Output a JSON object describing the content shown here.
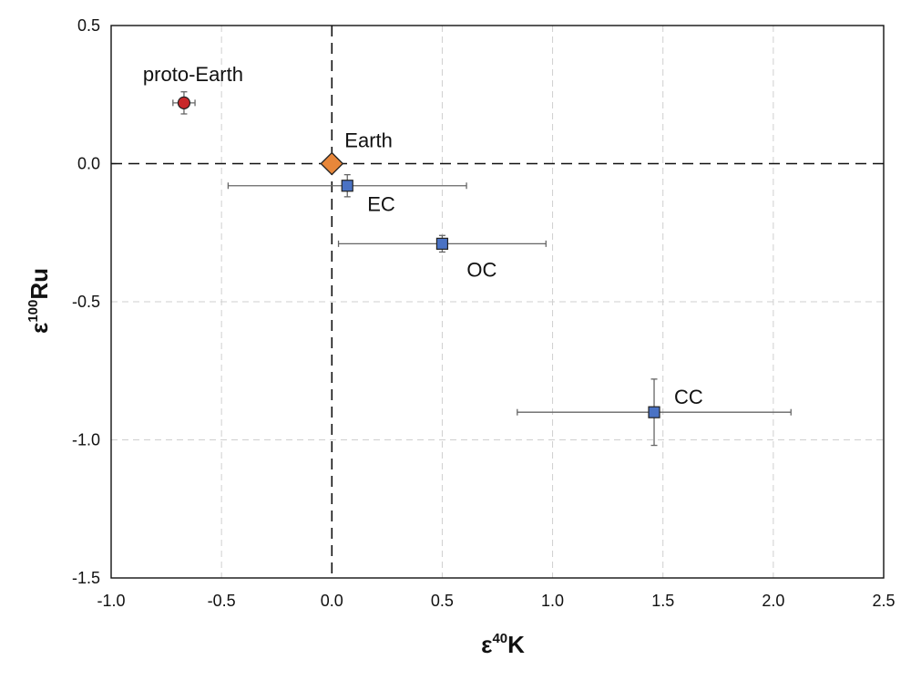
{
  "chart_data": {
    "type": "scatter",
    "title": "",
    "xlabel": {
      "prefix": "ε",
      "sup": "40",
      "main": "K"
    },
    "ylabel": {
      "prefix": "ε",
      "sup": "100",
      "main": "Ru"
    },
    "xlim": [
      -1.0,
      2.5
    ],
    "ylim": [
      -1.5,
      0.5
    ],
    "xticks": [
      -1.0,
      -0.5,
      0.0,
      0.5,
      1.0,
      1.5,
      2.0,
      2.5
    ],
    "yticks": [
      0.5,
      0.0,
      -0.5,
      -1.0,
      -1.5
    ],
    "xtick_labels": [
      "-1.0",
      "-0.5",
      "0.0",
      "0.5",
      "1.0",
      "1.5",
      "2.0",
      "2.5"
    ],
    "ytick_labels": [
      "0.5",
      "0.0",
      "-0.5",
      "-1.0",
      "-1.5"
    ],
    "grid": true,
    "reference_lines": {
      "x": 0.0,
      "y": 0.0
    },
    "points": [
      {
        "label": "proto-Earth",
        "x": -0.67,
        "y": 0.22,
        "xerr": 0.05,
        "yerr": 0.04,
        "marker": "circle",
        "color": "#c8282a"
      },
      {
        "label": "Earth",
        "x": 0.0,
        "y": 0.0,
        "xerr": 0,
        "yerr": 0,
        "marker": "diamond",
        "color": "#e8873a"
      },
      {
        "label": "EC",
        "x": 0.07,
        "y": -0.08,
        "xerr": 0.54,
        "yerr": 0.04,
        "marker": "square",
        "color": "#4a72c4"
      },
      {
        "label": "OC",
        "x": 0.5,
        "y": -0.29,
        "xerr": 0.47,
        "yerr": 0.03,
        "marker": "square",
        "color": "#4a72c4"
      },
      {
        "label": "CC",
        "x": 1.46,
        "y": -0.9,
        "xerr": 0.62,
        "yerr": 0.12,
        "marker": "square",
        "color": "#4a72c4"
      }
    ]
  }
}
